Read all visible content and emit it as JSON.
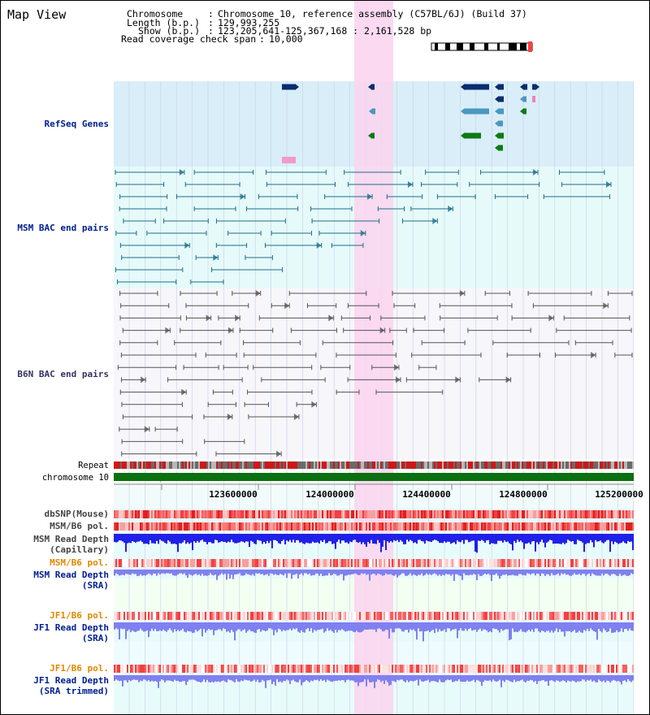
{
  "view": {
    "title": "Map View",
    "header": {
      "chromosome_label": "Chromosome",
      "chromosome_value": "Chromosome 10, reference assembly (C57BL/6J) (Build 37)",
      "length_label": "Length (b.p.)",
      "length_value": "129,993,255",
      "show_label": "Show (b.p.)",
      "show_value": "123,205,641-125,367,168 : 2,161,528 bp",
      "coverage_label": "Read coverage check span",
      "coverage_value": "10,000"
    }
  },
  "tracks": {
    "refseq": "RefSeq Genes",
    "msm_bac": "MSM BAC end pairs",
    "b6n_bac": "B6N BAC end pairs",
    "repeat": "Repeat",
    "chromosome": "chromosome 10",
    "dbsnp": "dbSNP(Mouse)",
    "msm_b6_pol_1": "MSM/B6 pol.",
    "msm_depth_cap_1": "MSM Read Depth",
    "msm_depth_cap_2": "(Capillary)",
    "msm_b6_pol_2": "MSM/B6 pol.",
    "msm_depth_sra_1": "MSM Read Depth",
    "msm_depth_sra_2": "(SRA)",
    "jf1_b6_pol_1": "JF1/B6 pol.",
    "jf1_depth_sra_1": "JF1 Read Depth",
    "jf1_depth_sra_2": "(SRA)",
    "jf1_b6_pol_2": "JF1/B6 pol.",
    "jf1_depth_trim_1": "JF1 Read Depth",
    "jf1_depth_trim_2": "(SRA trimmed)"
  },
  "axis": {
    "ticks": [
      "123600000",
      "124000000",
      "124400000",
      "124800000",
      "125200000"
    ]
  },
  "colors": {
    "refseq_bg": "#d9eef8",
    "bac_bg": "#e6fafa",
    "highlight": "#fad4ef",
    "chromosome_bar": "#0a7010",
    "gene_dark": "#0a2d6e",
    "gene_mid": "#4a98c0",
    "gene_green": "#0d7a16",
    "msm_pair": "#1d6f8a",
    "b6n_pair": "#555555",
    "depth_capillary": "#2020e8",
    "depth_sra": "#8080f0",
    "label_blue": "#002090",
    "label_orange": "#e08800"
  }
}
